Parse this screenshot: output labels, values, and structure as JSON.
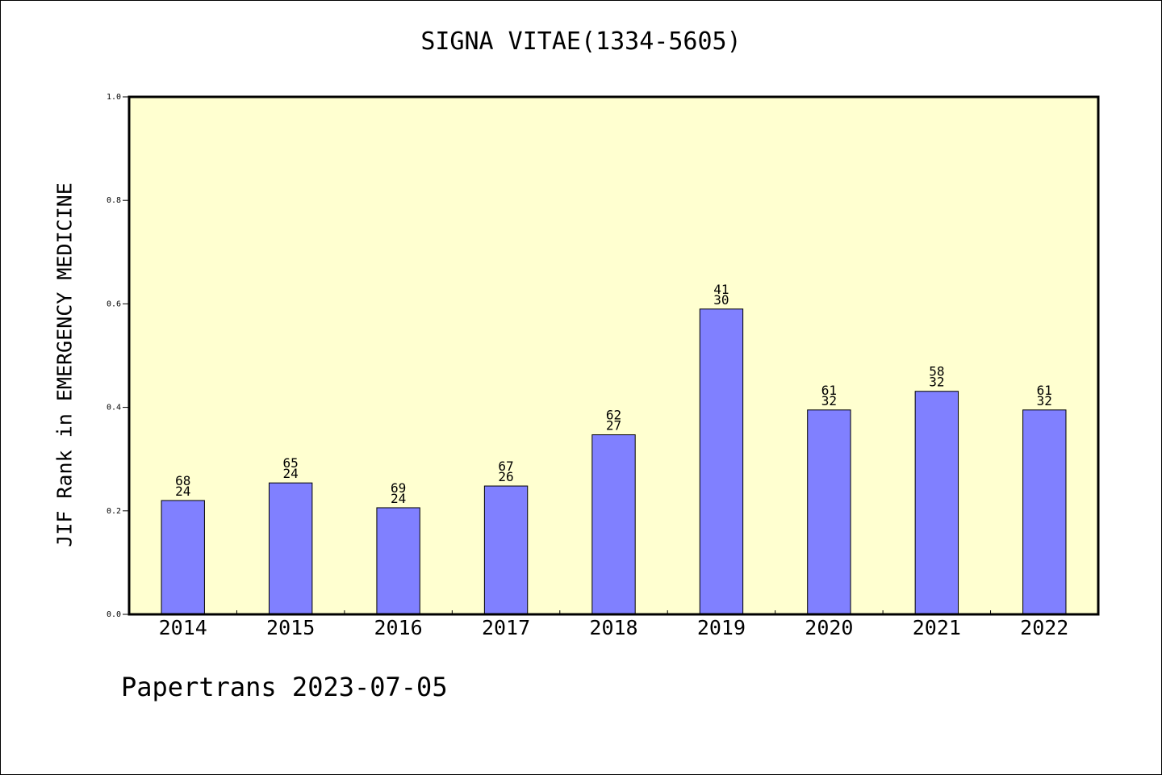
{
  "chart_data": {
    "type": "bar",
    "title": "SIGNA VITAE(1334-5605)",
    "ylabel": "JIF Rank in EMERGENCY MEDICINE",
    "xlabel": "",
    "ylim": [
      0,
      1.0
    ],
    "yticks": [
      "0.0",
      "0.2",
      "0.4",
      "0.6",
      "0.8",
      "1.0"
    ],
    "categories": [
      "2014",
      "2015",
      "2016",
      "2017",
      "2018",
      "2019",
      "2020",
      "2021",
      "2022"
    ],
    "values": [
      0.22,
      0.254,
      0.206,
      0.248,
      0.347,
      0.59,
      0.395,
      0.431,
      0.395
    ],
    "total_labels": [
      "68",
      "65",
      "69",
      "67",
      "62",
      "41",
      "61",
      "58",
      "61"
    ],
    "rank_labels": [
      "24",
      "24",
      "24",
      "26",
      "27",
      "30",
      "32",
      "32",
      "32"
    ],
    "plot_background": "#ffffd0",
    "bar_color": "#8080ff",
    "grid": false
  },
  "footer": "Papertrans 2023-07-05"
}
